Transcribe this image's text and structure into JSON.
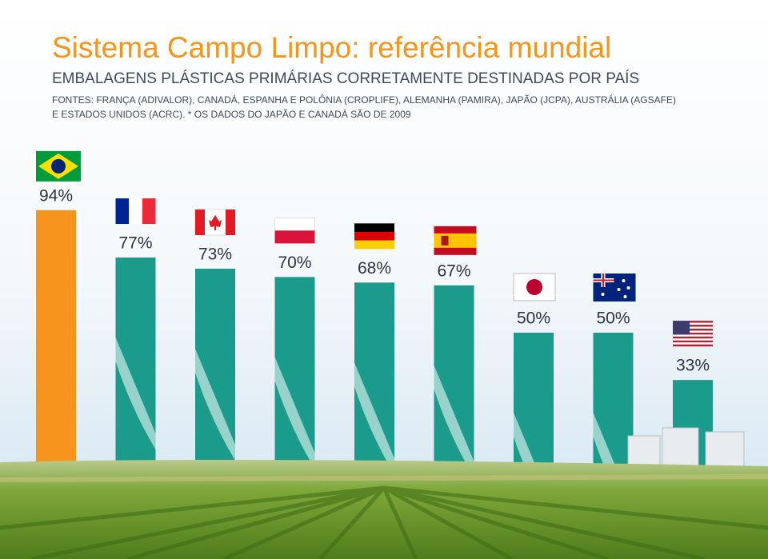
{
  "chart_data": {
    "type": "bar",
    "title": "Sistema Campo Limpo: referência mundial",
    "subtitle": "EMBALAGENS PLÁSTICAS PRIMÁRIAS CORRETAMENTE DESTINADAS POR PAÍS",
    "source": [
      "FONTES: FRANÇA (ADIVALOR), CANADÁ, ESPANHA E POLÔNIA (CROPLIFE), ALEMANHA (PAMIRA), JAPÃO (JCPA), AUSTRÁLIA (AGSAFE)",
      "E ESTADOS UNIDOS (ACRC). * OS DADOS DO JAPÃO E CANADÁ SÃO DE 2009"
    ],
    "values": [
      94,
      77,
      73,
      70,
      68,
      67,
      50,
      50,
      33
    ],
    "value_labels": [
      "94%",
      "77%",
      "73%",
      "70%",
      "68%",
      "67%",
      "50%",
      "50%",
      "33%"
    ],
    "colors": [
      "#f7941d",
      "#1a9b8c",
      "#1a9b8c",
      "#1a9b8c",
      "#1a9b8c",
      "#1a9b8c",
      "#1a9b8c",
      "#1a9b8c",
      "#1a9b8c"
    ]
  }
}
